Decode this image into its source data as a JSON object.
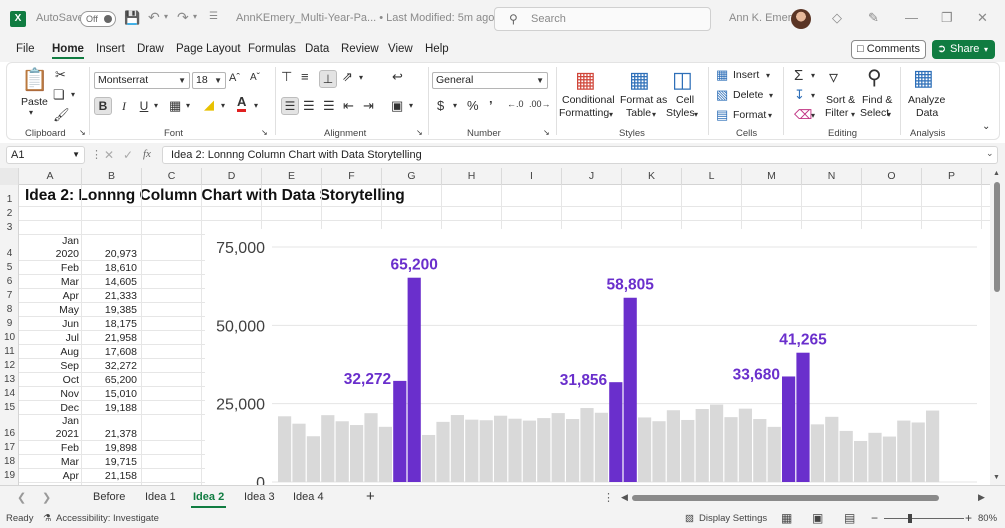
{
  "titlebar": {
    "autosave_label": "AutoSave",
    "autosave_state": "Off",
    "filename": "AnnKEmery_Multi-Year-Pa... • Last Modified: 5m ago",
    "search_placeholder": "Search",
    "user_name": "Ann K. Emery"
  },
  "menu": {
    "items": [
      "File",
      "Home",
      "Insert",
      "Draw",
      "Page Layout",
      "Formulas",
      "Data",
      "Review",
      "View",
      "Help"
    ],
    "comments_label": "Comments",
    "share_label": "Share"
  },
  "ribbon": {
    "paste": "Paste",
    "font_name": "Montserrat",
    "font_size": "18",
    "number_format": "General",
    "insert": "Insert",
    "delete": "Delete",
    "format": "Format",
    "conditional": [
      "Conditional",
      "Formatting"
    ],
    "format_as_table": [
      "Format as",
      "Table"
    ],
    "cell_styles": [
      "Cell",
      "Styles"
    ],
    "sort_filter": [
      "Sort &",
      "Filter"
    ],
    "find_select": [
      "Find &",
      "Select"
    ],
    "analyze": [
      "Analyze",
      "Data"
    ],
    "groups": [
      "Clipboard",
      "Font",
      "Alignment",
      "Number",
      "Styles",
      "Cells",
      "Editing",
      "Analysis"
    ]
  },
  "formula_bar": {
    "name_box": "A1",
    "fx": "fx",
    "content": "Idea 2: Lonnng Column Chart with Data Storytelling"
  },
  "grid": {
    "columns": [
      "A",
      "B",
      "C",
      "D",
      "E",
      "F",
      "G",
      "H",
      "I",
      "J",
      "K",
      "L",
      "M",
      "N",
      "O",
      "P"
    ],
    "rows": [
      "1",
      "2",
      "3",
      "4",
      "5",
      "6",
      "7",
      "8",
      "9",
      "10",
      "11",
      "12",
      "13",
      "14",
      "15",
      "16",
      "17",
      "18",
      "19"
    ],
    "title": "Idea 2: Lonnng Column Chart with Data Storytelling",
    "data_rows": [
      {
        "a_top": "Jan",
        "a": "2020",
        "b": "20,973"
      },
      {
        "a": "Feb",
        "b": "18,610"
      },
      {
        "a": "Mar",
        "b": "14,605"
      },
      {
        "a": "Apr",
        "b": "21,333"
      },
      {
        "a": "May",
        "b": "19,385"
      },
      {
        "a": "Jun",
        "b": "18,175"
      },
      {
        "a": "Jul",
        "b": "21,958"
      },
      {
        "a": "Aug",
        "b": "17,608"
      },
      {
        "a": "Sep",
        "b": "32,272"
      },
      {
        "a": "Oct",
        "b": "65,200"
      },
      {
        "a": "Nov",
        "b": "15,010"
      },
      {
        "a": "Dec",
        "b": "19,188"
      },
      {
        "a_top": "Jan",
        "a": "2021",
        "b": "21,378"
      },
      {
        "a": "Feb",
        "b": "19,898"
      },
      {
        "a": "Mar",
        "b": "19,715"
      },
      {
        "a": "Apr",
        "b": "21,158"
      }
    ]
  },
  "chart_data": {
    "type": "bar",
    "title": "",
    "xlabel": "",
    "ylabel": "",
    "ylim": [
      0,
      75000
    ],
    "yticks": [
      "75,000",
      "50,000",
      "25,000",
      "0"
    ],
    "grid": true,
    "colors": {
      "base": "#d9d9d9",
      "highlight": "#6a2fcc",
      "label": "#6a2fcc"
    },
    "values": [
      20973,
      18610,
      14605,
      21333,
      19385,
      18175,
      21958,
      17608,
      32272,
      65200,
      15010,
      19188,
      21378,
      19898,
      19715,
      21158,
      20200,
      19600,
      20400,
      22000,
      20100,
      23600,
      22100,
      31856,
      58805,
      20600,
      19400,
      22900,
      19800,
      23300,
      24700,
      20700,
      23400,
      20100,
      17600,
      33680,
      41265,
      18400,
      20800,
      16300,
      13100,
      15700,
      14500,
      19600,
      19000,
      22800
    ],
    "highlights": [
      8,
      9,
      23,
      24,
      35,
      36
    ],
    "data_labels": [
      {
        "index": 8,
        "text": "32,272"
      },
      {
        "index": 9,
        "text": "65,200"
      },
      {
        "index": 23,
        "text": "31,856"
      },
      {
        "index": 24,
        "text": "58,805"
      },
      {
        "index": 35,
        "text": "33,680"
      },
      {
        "index": 36,
        "text": "41,265"
      }
    ]
  },
  "tabs": {
    "items": [
      "Before",
      "Idea 1",
      "Idea 2",
      "Idea 3",
      "Idea 4"
    ],
    "active": "Idea 2",
    "add": "+"
  },
  "status": {
    "ready": "Ready",
    "accessibility": "Accessibility: Investigate",
    "display_settings": "Display Settings",
    "zoom": "80%"
  }
}
